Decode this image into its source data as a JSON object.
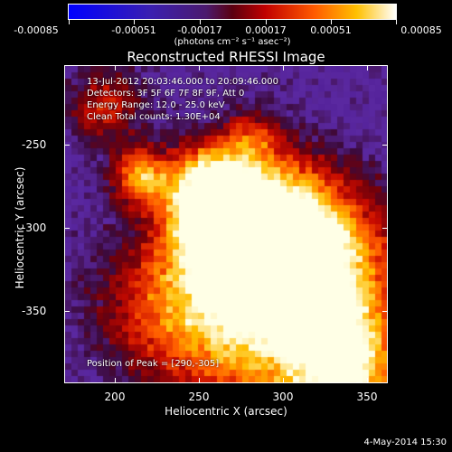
{
  "title": "Reconstructed RHESSI Image",
  "colorbar": {
    "min_label": "-0.00085",
    "labels": [
      "-0.00085",
      "-0.00051",
      "-0.00017",
      "0.00017",
      "0.00051",
      "0.00085"
    ],
    "units": "(photons cm⁻² s⁻¹ asec⁻²)",
    "colormap": "blue-purple-red-orange-yellow-white"
  },
  "info": {
    "time": "13-Jul-2012 20:03:46.000 to 20:09:46.000",
    "detectors": "Detectors: 3F 5F 6F 7F 8F 9F, Att 0",
    "energy": "Energy Range: 12.0 - 25.0 keV",
    "clean": "Clean     Total counts: 1.30E+04",
    "peak": "Position of Peak = [290,-305]"
  },
  "axes": {
    "xlabel": "Heliocentric X (arcsec)",
    "ylabel": "Heliocentric Y (arcsec)",
    "x_ticks": [
      "200",
      "250",
      "300",
      "350"
    ],
    "y_ticks": [
      "-250",
      "-300",
      "-350"
    ]
  },
  "footer": {
    "date": "4-May-2014 15:30"
  }
}
